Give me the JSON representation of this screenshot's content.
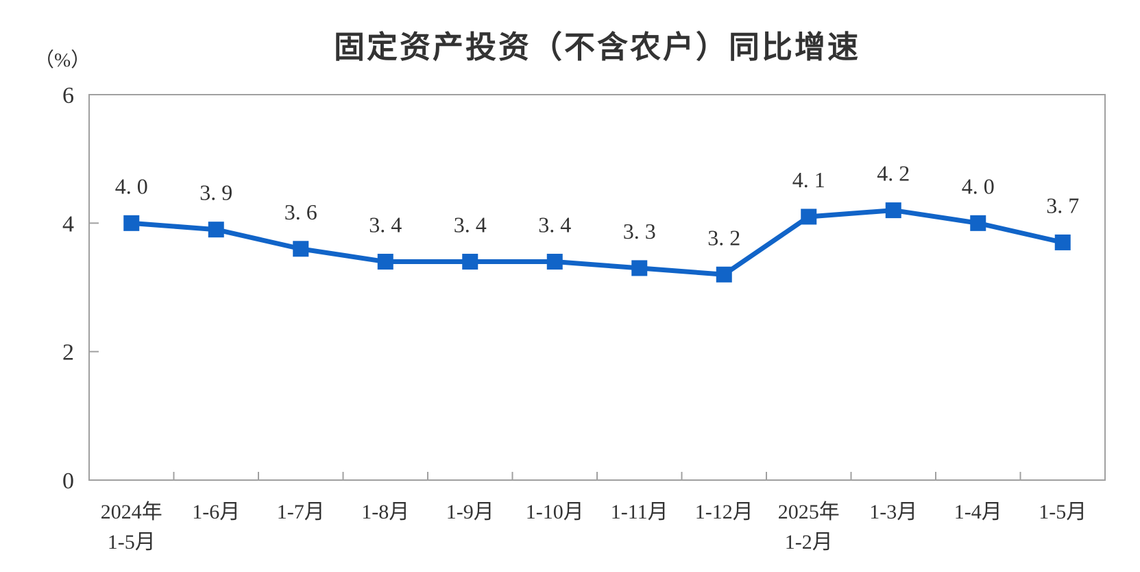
{
  "chart_data": {
    "type": "line",
    "title": "固定资产投资（不含农户）同比增速",
    "ylabel": "（%）",
    "xlabel": "",
    "categories": [
      [
        "2024年",
        "1-5月"
      ],
      [
        "1-6月"
      ],
      [
        "1-7月"
      ],
      [
        "1-8月"
      ],
      [
        "1-9月"
      ],
      [
        "1-10月"
      ],
      [
        "1-11月"
      ],
      [
        "1-12月"
      ],
      [
        "2025年",
        "1-2月"
      ],
      [
        "1-3月"
      ],
      [
        "1-4月"
      ],
      [
        "1-5月"
      ]
    ],
    "series": [
      {
        "name": "固定资产投资（不含农户）同比增速",
        "values": [
          4.0,
          3.9,
          3.6,
          3.4,
          3.4,
          3.4,
          3.3,
          3.2,
          4.1,
          4.2,
          4.0,
          3.7
        ],
        "point_labels": [
          "4. 0",
          "3. 9",
          "3. 6",
          "3. 4",
          "3. 4",
          "3. 4",
          "3. 3",
          "3. 2",
          "4. 1",
          "4. 2",
          "4. 0",
          "3. 7"
        ]
      }
    ],
    "ylim": [
      0,
      6
    ],
    "yticks": [
      0,
      2,
      4,
      6
    ],
    "grid": false,
    "legend": "none",
    "marker": "square",
    "line_color": "#1164c8",
    "axis_color": "#a0a0a0",
    "text_color": "#333333"
  }
}
